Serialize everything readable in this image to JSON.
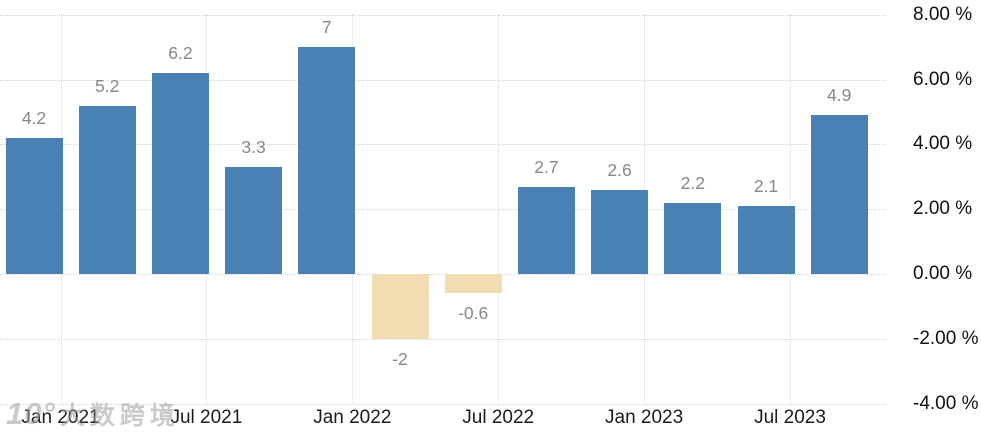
{
  "chart_data": {
    "type": "bar",
    "title": "",
    "xlabel": "",
    "ylabel": "",
    "unit": "%",
    "categories_shown_on_axis": [
      "Jan 2021",
      "Jul 2021",
      "Jan 2022",
      "Jul 2022",
      "Jan 2023",
      "Jul 2023"
    ],
    "x_labels": [
      "Jan 2021",
      "Jul 2021",
      "Jan 2022",
      "Jul 2022",
      "Jan 2023",
      "Jul 2023"
    ],
    "values": [
      4.2,
      5.2,
      6.2,
      3.3,
      7,
      -2,
      -0.6,
      2.7,
      2.6,
      2.2,
      2.1,
      4.9
    ],
    "value_labels": [
      "4.2",
      "5.2",
      "6.2",
      "3.3",
      "7",
      "-2",
      "-0.6",
      "2.7",
      "2.6",
      "2.2",
      "2.1",
      "4.9"
    ],
    "y_ticks": [
      "8.00 %",
      "6.00 %",
      "4.00 %",
      "2.00 %",
      "0.00 %",
      "-2.00 %",
      "-4.00 %"
    ],
    "y_tick_values": [
      8,
      6,
      4,
      2,
      0,
      -2,
      -4
    ],
    "ylim": [
      -4,
      8
    ],
    "grid": "dotted",
    "legend_position": "none",
    "positive_color": "#4a81b4",
    "negative_color": "#f2dcb2",
    "value_label_color": "#878787",
    "axis_label_color": "#1c1c1c"
  },
  "watermark": {
    "logo_text": "10°",
    "brand_text": "大数跨境"
  }
}
